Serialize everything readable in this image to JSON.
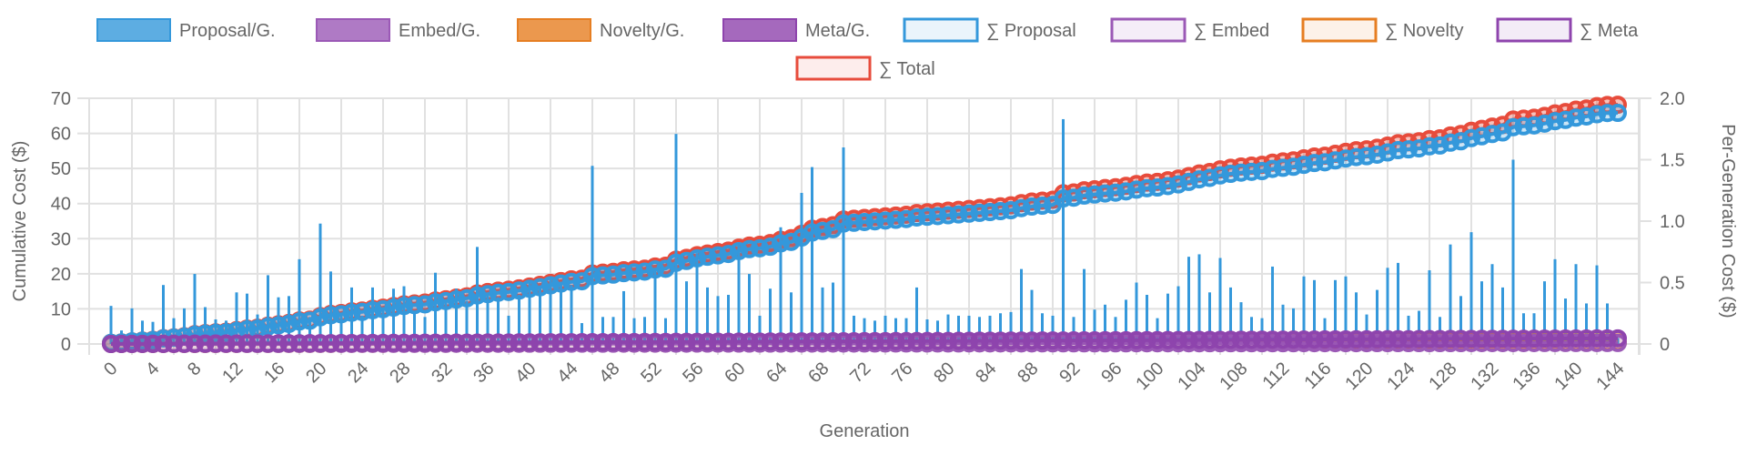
{
  "chart_data": {
    "type": "bar+line",
    "title": "",
    "xlabel": "Generation",
    "ylabel_left": "Cumulative Cost ($)",
    "ylabel_right": "Per-Generation Cost ($)",
    "ylim_left": [
      0,
      70
    ],
    "ylim_right": [
      0,
      2.0
    ],
    "yticks_left": [
      "0",
      "10",
      "20",
      "30",
      "40",
      "50",
      "60",
      "70"
    ],
    "yticks_right": [
      "0",
      "0.5",
      "1.0",
      "1.5",
      "2.0"
    ],
    "x_tick_step": 4,
    "x": {
      "start": 0,
      "end": 144
    },
    "grid": true,
    "legend_placement": "top",
    "colors": {
      "proposal": "#3498db",
      "embed": "#9b59b6",
      "novelty": "#e67e22",
      "meta": "#8e44ad",
      "total": "#e74c3c"
    },
    "legend": [
      {
        "label": "Proposal/G.",
        "key": "proposal",
        "kind": "bar"
      },
      {
        "label": "Embed/G.",
        "key": "embed",
        "kind": "bar"
      },
      {
        "label": "Novelty/G.",
        "key": "novelty",
        "kind": "bar"
      },
      {
        "label": "Meta/G.",
        "key": "meta",
        "kind": "bar"
      },
      {
        "label": "∑ Proposal",
        "key": "proposal",
        "kind": "line"
      },
      {
        "label": "∑ Embed",
        "key": "embed",
        "kind": "line"
      },
      {
        "label": "∑ Novelty",
        "key": "novelty",
        "kind": "line"
      },
      {
        "label": "∑ Meta",
        "key": "meta",
        "kind": "line"
      },
      {
        "label": "∑ Total",
        "key": "total",
        "kind": "line"
      }
    ],
    "per_generation_series": {
      "proposal": [
        0.31,
        0.11,
        0.29,
        0.19,
        0.18,
        0.48,
        0.21,
        0.29,
        0.57,
        0.3,
        0.2,
        0.19,
        0.42,
        0.41,
        0.24,
        0.56,
        0.38,
        0.39,
        0.69,
        0.22,
        0.98,
        0.59,
        0.25,
        0.46,
        0.23,
        0.46,
        0.3,
        0.45,
        0.47,
        0.25,
        0.22,
        0.58,
        0.35,
        0.45,
        0.35,
        0.79,
        0.4,
        0.38,
        0.23,
        0.4,
        0.5,
        0.45,
        0.55,
        0.5,
        0.48,
        0.17,
        1.45,
        0.22,
        0.22,
        0.43,
        0.21,
        0.22,
        0.6,
        0.21,
        1.71,
        0.51,
        0.74,
        0.46,
        0.39,
        0.4,
        0.82,
        0.57,
        0.23,
        0.45,
        0.95,
        0.42,
        1.23,
        1.44,
        0.46,
        0.5,
        1.6,
        0.23,
        0.21,
        0.19,
        0.23,
        0.21,
        0.21,
        0.46,
        0.2,
        0.19,
        0.24,
        0.23,
        0.23,
        0.22,
        0.23,
        0.25,
        0.26,
        0.61,
        0.44,
        0.25,
        0.23,
        1.83,
        0.22,
        0.61,
        0.28,
        0.32,
        0.22,
        0.36,
        0.5,
        0.4,
        0.21,
        0.41,
        0.47,
        0.71,
        0.73,
        0.42,
        0.7,
        0.46,
        0.34,
        0.22,
        0.21,
        0.63,
        0.32,
        0.29,
        0.55,
        0.52,
        0.21,
        0.52,
        0.55,
        0.42,
        0.24,
        0.44,
        0.62,
        0.66,
        0.23,
        0.27,
        0.6,
        0.22,
        0.81,
        0.39,
        0.91,
        0.51,
        0.65,
        0.46,
        1.5,
        0.25,
        0.25,
        0.51,
        0.69,
        0.37,
        0.65,
        0.33,
        0.64,
        0.33,
        0.05
      ],
      "embed": [
        0.002,
        0.002,
        0.002,
        0.002,
        0.002,
        0.002,
        0.002,
        0.002,
        0.002,
        0.002,
        0.002,
        0.002,
        0.002,
        0.002,
        0.002,
        0.002,
        0.002,
        0.002,
        0.002,
        0.002,
        0.002,
        0.002,
        0.002,
        0.002,
        0.002,
        0.002,
        0.002,
        0.002,
        0.002,
        0.002,
        0.002,
        0.002,
        0.002,
        0.002,
        0.002,
        0.002,
        0.002,
        0.002,
        0.002,
        0.002,
        0.002,
        0.002,
        0.002,
        0.002,
        0.002,
        0.002,
        0.002,
        0.002,
        0.002,
        0.002,
        0.002,
        0.002,
        0.002,
        0.002,
        0.002,
        0.002,
        0.002,
        0.002,
        0.002,
        0.002,
        0.002,
        0.002,
        0.002,
        0.002,
        0.002,
        0.002,
        0.002,
        0.002,
        0.002,
        0.002,
        0.002,
        0.002,
        0.002,
        0.002,
        0.002,
        0.002,
        0.002,
        0.002,
        0.002,
        0.002,
        0.002,
        0.002,
        0.002,
        0.002,
        0.002,
        0.002,
        0.002,
        0.002,
        0.002,
        0.002,
        0.002,
        0.002,
        0.002,
        0.002,
        0.002,
        0.002,
        0.002,
        0.002,
        0.002,
        0.002,
        0.002,
        0.002,
        0.002,
        0.002,
        0.002,
        0.002,
        0.002,
        0.002,
        0.002,
        0.002,
        0.002,
        0.002,
        0.002,
        0.002,
        0.002,
        0.002,
        0.002,
        0.002,
        0.002,
        0.002,
        0.002,
        0.002,
        0.002,
        0.002,
        0.002,
        0.002,
        0.002,
        0.002,
        0.002,
        0.002,
        0.002,
        0.002,
        0.002,
        0.002,
        0.002,
        0.002,
        0.002,
        0.002,
        0.002,
        0.002,
        0.002,
        0.002,
        0.002,
        0.002,
        0.002
      ],
      "novelty": [
        0.003,
        0.003,
        0.003,
        0.003,
        0.003,
        0.003,
        0.003,
        0.003,
        0.003,
        0.003,
        0.003,
        0.003,
        0.003,
        0.003,
        0.003,
        0.003,
        0.003,
        0.003,
        0.003,
        0.003,
        0.003,
        0.003,
        0.003,
        0.003,
        0.003,
        0.003,
        0.003,
        0.003,
        0.003,
        0.003,
        0.003,
        0.003,
        0.003,
        0.003,
        0.003,
        0.003,
        0.003,
        0.003,
        0.003,
        0.003,
        0.003,
        0.003,
        0.003,
        0.003,
        0.003,
        0.003,
        0.003,
        0.003,
        0.003,
        0.003,
        0.003,
        0.003,
        0.003,
        0.003,
        0.003,
        0.003,
        0.003,
        0.003,
        0.003,
        0.003,
        0.003,
        0.003,
        0.003,
        0.003,
        0.003,
        0.003,
        0.003,
        0.003,
        0.003,
        0.003,
        0.003,
        0.003,
        0.003,
        0.003,
        0.003,
        0.003,
        0.003,
        0.003,
        0.003,
        0.003,
        0.003,
        0.003,
        0.003,
        0.003,
        0.003,
        0.003,
        0.003,
        0.003,
        0.003,
        0.003,
        0.003,
        0.003,
        0.003,
        0.003,
        0.003,
        0.003,
        0.003,
        0.003,
        0.003,
        0.003,
        0.003,
        0.003,
        0.003,
        0.003,
        0.003,
        0.003,
        0.003,
        0.003,
        0.003,
        0.003,
        0.003,
        0.003,
        0.003,
        0.003,
        0.003,
        0.003,
        0.003,
        0.003,
        0.003,
        0.003,
        0.003,
        0.003,
        0.003,
        0.003,
        0.003,
        0.003,
        0.003,
        0.003,
        0.003,
        0.003,
        0.003,
        0.003,
        0.003,
        0.003,
        0.003,
        0.003,
        0.003,
        0.003,
        0.003,
        0.003,
        0.003,
        0.003,
        0.003,
        0.003,
        0.003
      ],
      "meta": [
        0.011,
        0.011,
        0.011,
        0.011,
        0.011,
        0.011,
        0.011,
        0.011,
        0.011,
        0.011,
        0.011,
        0.011,
        0.011,
        0.011,
        0.011,
        0.011,
        0.011,
        0.011,
        0.011,
        0.011,
        0.011,
        0.011,
        0.011,
        0.011,
        0.011,
        0.011,
        0.011,
        0.011,
        0.011,
        0.011,
        0.011,
        0.011,
        0.011,
        0.011,
        0.011,
        0.011,
        0.011,
        0.011,
        0.011,
        0.011,
        0.011,
        0.011,
        0.011,
        0.011,
        0.011,
        0.011,
        0.011,
        0.011,
        0.011,
        0.011,
        0.011,
        0.011,
        0.011,
        0.011,
        0.011,
        0.011,
        0.011,
        0.011,
        0.011,
        0.011,
        0.011,
        0.011,
        0.011,
        0.011,
        0.011,
        0.011,
        0.011,
        0.011,
        0.011,
        0.011,
        0.011,
        0.011,
        0.011,
        0.011,
        0.011,
        0.011,
        0.011,
        0.011,
        0.011,
        0.011,
        0.011,
        0.011,
        0.011,
        0.011,
        0.011,
        0.011,
        0.011,
        0.011,
        0.011,
        0.011,
        0.011,
        0.011,
        0.011,
        0.011,
        0.011,
        0.011,
        0.011,
        0.011,
        0.011,
        0.011,
        0.011,
        0.011,
        0.011,
        0.011,
        0.011,
        0.011,
        0.011,
        0.011,
        0.011,
        0.011,
        0.011,
        0.011,
        0.011,
        0.011,
        0.011,
        0.011,
        0.011,
        0.011,
        0.011,
        0.011,
        0.011,
        0.011,
        0.011,
        0.011,
        0.011,
        0.011,
        0.011,
        0.011,
        0.011,
        0.011,
        0.011,
        0.011,
        0.011,
        0.011,
        0.011,
        0.011,
        0.011,
        0.011,
        0.011,
        0.011,
        0.011,
        0.011,
        0.011,
        0.011,
        0.011
      ]
    }
  }
}
